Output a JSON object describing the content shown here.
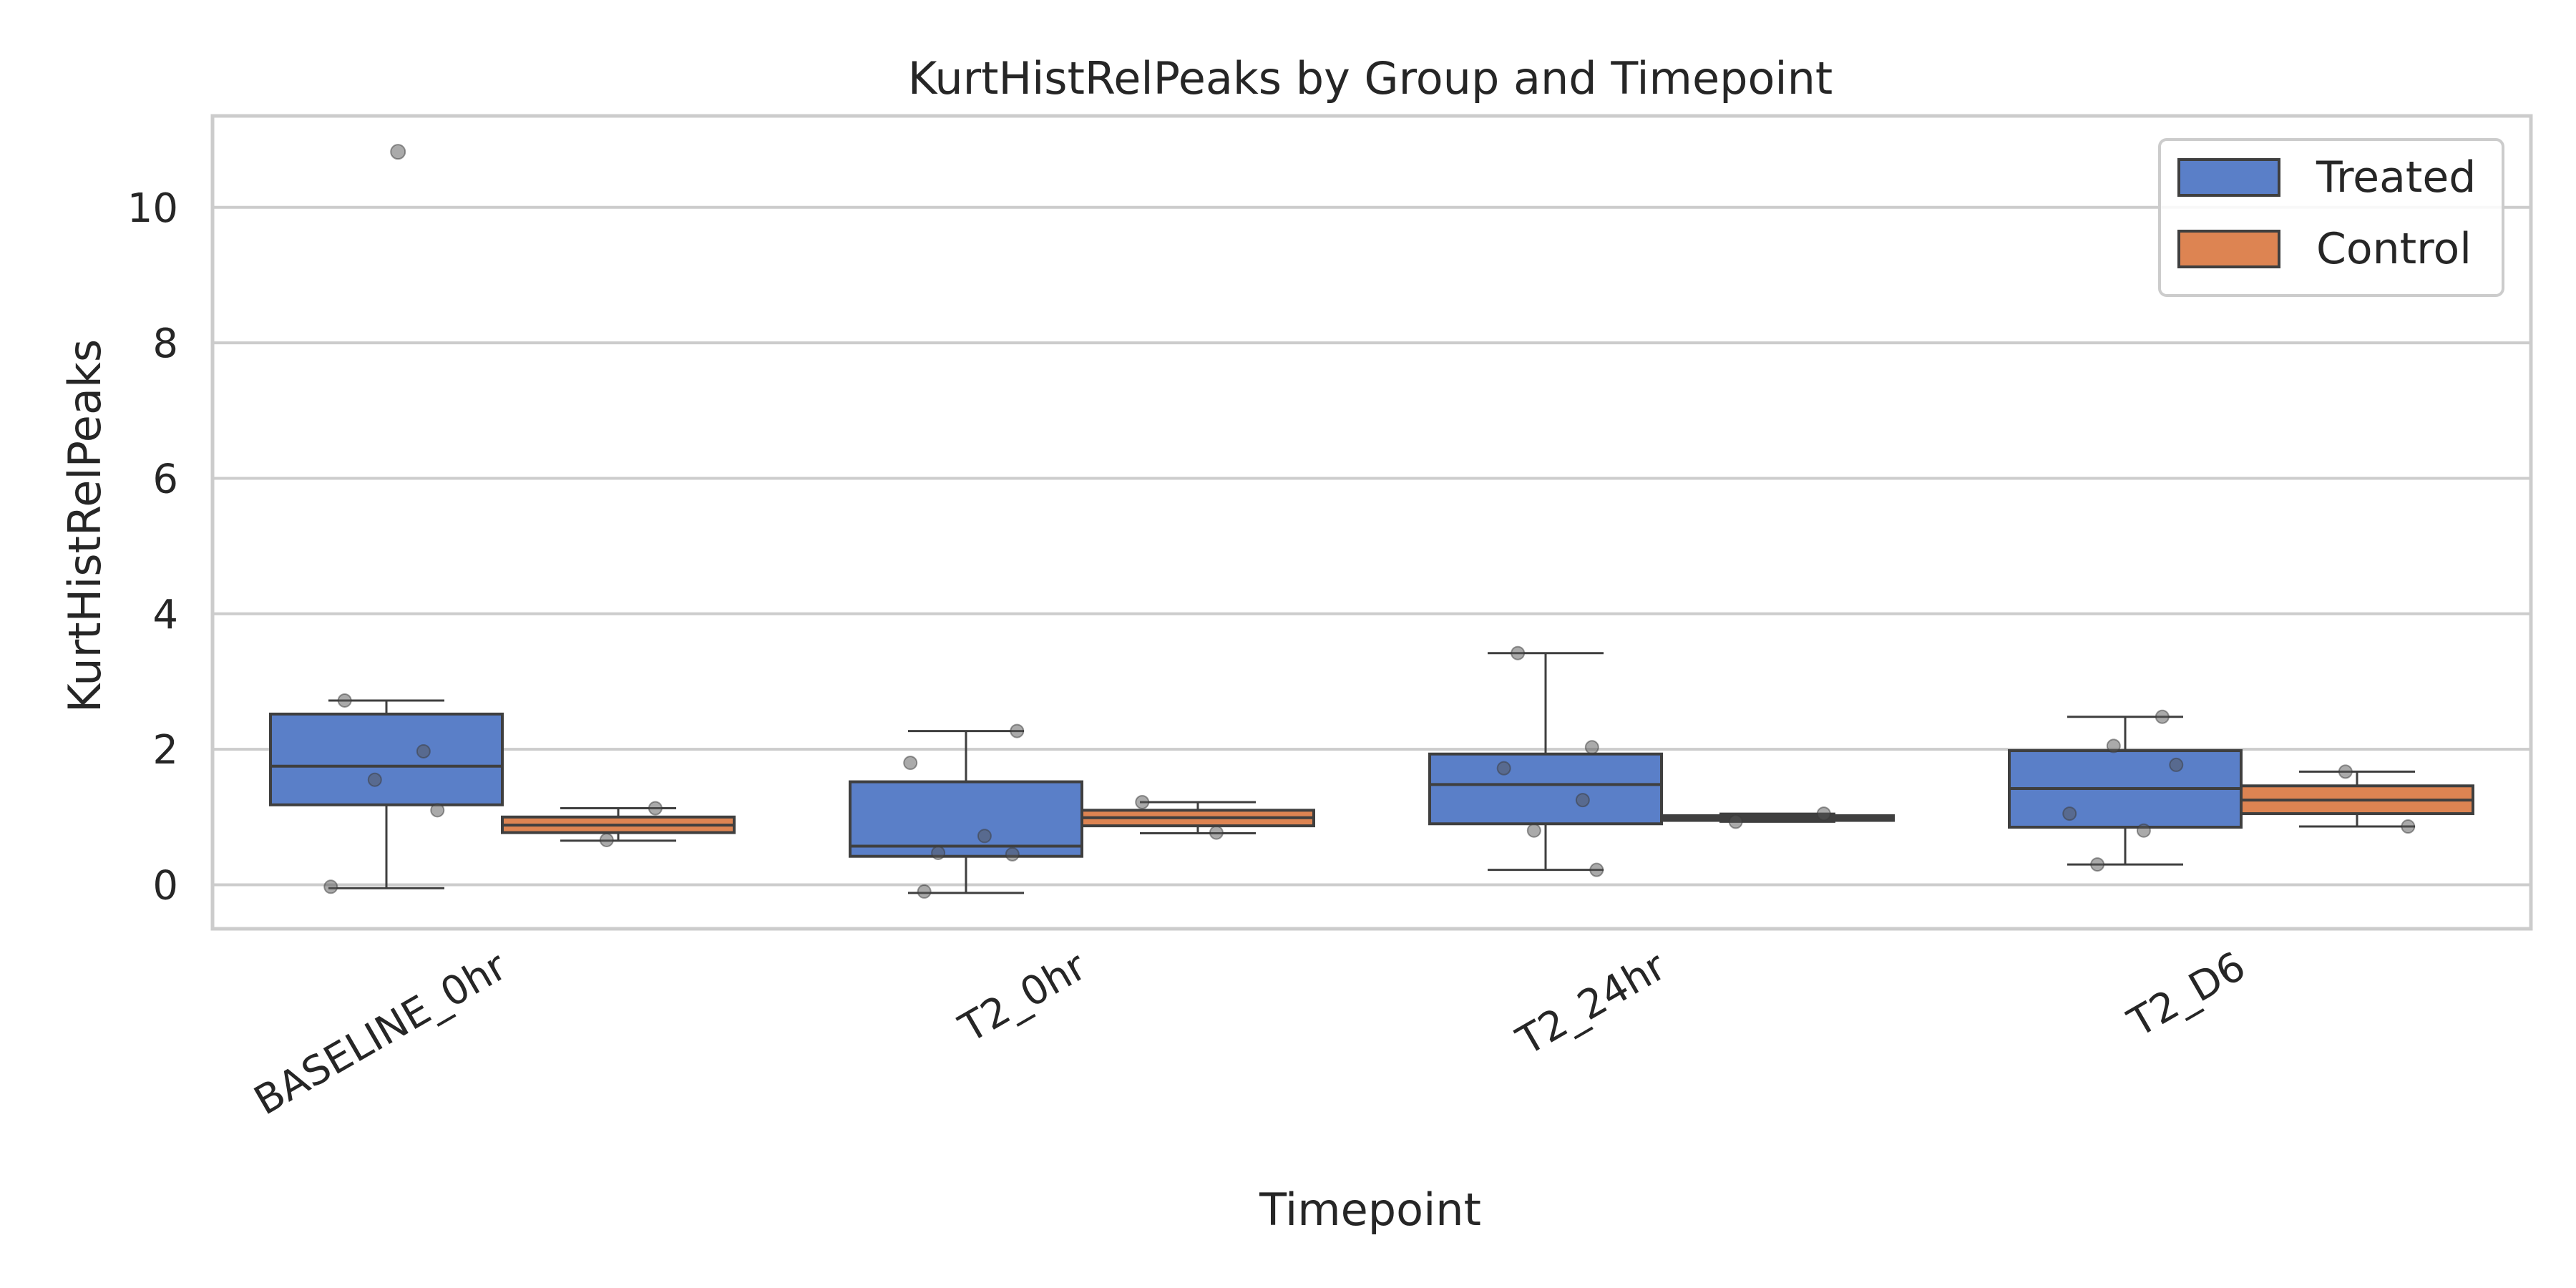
{
  "chart_data": {
    "type": "box",
    "title": "KurtHistRelPeaks by Group and Timepoint",
    "xlabel": "Timepoint",
    "ylabel": "KurtHistRelPeaks",
    "ylim": [
      -0.65,
      11.35
    ],
    "yticks": [
      0,
      2,
      4,
      6,
      8,
      10
    ],
    "grid": true,
    "legend_position": "top-right",
    "categories": [
      "BASELINE_0hr",
      "T2_0hr",
      "T2_24hr",
      "T2_D6"
    ],
    "series": [
      {
        "name": "Treated",
        "color": "#5a7fc8",
        "boxes": [
          {
            "q1": 1.18,
            "median": 1.75,
            "q3": 2.52,
            "whisker_low": -0.05,
            "whisker_high": 2.72,
            "outliers": [
              10.82
            ],
            "points": [
              2.72,
              1.97,
              1.55,
              1.1,
              -0.03
            ]
          },
          {
            "q1": 0.42,
            "median": 0.57,
            "q3": 1.52,
            "whisker_low": -0.12,
            "whisker_high": 2.27,
            "outliers": [],
            "points": [
              2.27,
              1.8,
              0.72,
              0.47,
              0.45,
              -0.1
            ]
          },
          {
            "q1": 0.9,
            "median": 1.48,
            "q3": 1.93,
            "whisker_low": 0.22,
            "whisker_high": 3.42,
            "outliers": [],
            "points": [
              3.42,
              2.03,
              1.72,
              1.25,
              0.8,
              0.22
            ]
          },
          {
            "q1": 0.85,
            "median": 1.42,
            "q3": 1.98,
            "whisker_low": 0.3,
            "whisker_high": 2.48,
            "outliers": [],
            "points": [
              2.48,
              2.05,
              1.77,
              1.05,
              0.8,
              0.3
            ]
          }
        ]
      },
      {
        "name": "Control",
        "color": "#dd8452",
        "boxes": [
          {
            "q1": 0.77,
            "median": 0.88,
            "q3": 1.0,
            "whisker_low": 0.65,
            "whisker_high": 1.13,
            "outliers": [],
            "points": [
              1.13,
              0.66
            ]
          },
          {
            "q1": 0.87,
            "median": 0.99,
            "q3": 1.1,
            "whisker_low": 0.76,
            "whisker_high": 1.22,
            "outliers": [],
            "points": [
              1.22,
              0.77
            ]
          },
          {
            "q1": 0.95,
            "median": 0.99,
            "q3": 1.02,
            "whisker_low": 0.93,
            "whisker_high": 1.05,
            "outliers": [],
            "points": [
              1.05,
              0.93
            ]
          },
          {
            "q1": 1.05,
            "median": 1.25,
            "q3": 1.46,
            "whisker_low": 0.86,
            "whisker_high": 1.67,
            "outliers": [],
            "points": [
              1.67,
              0.86
            ]
          }
        ]
      }
    ]
  }
}
